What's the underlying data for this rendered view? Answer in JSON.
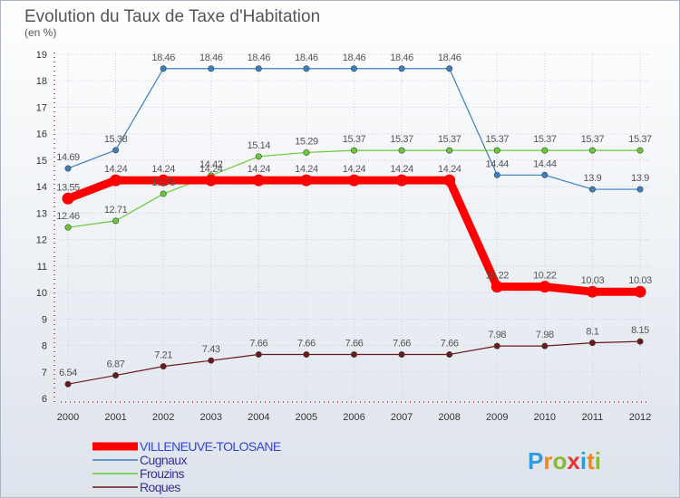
{
  "chart_data": {
    "type": "line",
    "title": "Evolution du Taux de Taxe d'Habitation",
    "subtitle": "(en %)",
    "x": [
      "2000",
      "2001",
      "2002",
      "2003",
      "2004",
      "2005",
      "2006",
      "2007",
      "2008",
      "2009",
      "2010",
      "2011",
      "2012"
    ],
    "ylim": [
      6,
      19
    ],
    "yticks": [
      6,
      7,
      8,
      9,
      10,
      11,
      12,
      13,
      14,
      15,
      16,
      17,
      18,
      19
    ],
    "grid": true,
    "legend_position": "bottom-left",
    "series": [
      {
        "name": "VILLENEUVE-TOLOSANE",
        "color": "#ff0000",
        "values": [
          13.55,
          14.24,
          14.24,
          14.24,
          14.24,
          14.24,
          14.24,
          14.24,
          14.24,
          10.22,
          10.22,
          10.03,
          10.03
        ],
        "labels": [
          "13.55",
          "14.24",
          "14.24",
          "14.24",
          "14.24",
          "14.24",
          "14.24",
          "14.24",
          "14.24",
          "10.22",
          "10.22",
          "10.03",
          "10.03"
        ]
      },
      {
        "name": "Cugnaux",
        "color": "#3a7fc1",
        "values": [
          14.69,
          15.38,
          18.46,
          18.46,
          18.46,
          18.46,
          18.46,
          18.46,
          18.46,
          14.44,
          14.44,
          13.9,
          13.9
        ],
        "labels": [
          "14.69",
          "15.38",
          "18.46",
          "18.46",
          "18.46",
          "18.46",
          "18.46",
          "18.46",
          "18.46",
          "14.44",
          "14.44",
          "13.9",
          "13.9"
        ]
      },
      {
        "name": "Frouzins",
        "color": "#66cc33",
        "values": [
          12.46,
          12.71,
          13.73,
          14.42,
          15.14,
          15.29,
          15.37,
          15.37,
          15.37,
          15.37,
          15.37,
          15.37,
          15.37
        ],
        "labels": [
          "12.46",
          "12.71",
          "13.73",
          "14.42",
          "15.14",
          "15.29",
          "15.37",
          "15.37",
          "15.37",
          "15.37",
          "15.37",
          "15.37",
          "15.37"
        ]
      },
      {
        "name": "Roques",
        "color": "#6b1a1a",
        "values": [
          6.54,
          6.87,
          7.21,
          7.43,
          7.66,
          7.66,
          7.66,
          7.66,
          7.66,
          7.98,
          7.98,
          8.1,
          8.15
        ],
        "labels": [
          "6.54",
          "6.87",
          "7.21",
          "7.43",
          "7.66",
          "7.66",
          "7.66",
          "7.66",
          "7.66",
          "7.98",
          "7.98",
          "8.1",
          "8.15"
        ]
      }
    ]
  },
  "logo": {
    "letters": [
      "P",
      "r",
      "o",
      "x",
      "i",
      "t",
      "i"
    ],
    "colors": [
      "#3399dd",
      "#ee8822",
      "#88bb33",
      "#ee3333",
      "#3399dd",
      "#ee8822",
      "#88bb33"
    ]
  }
}
